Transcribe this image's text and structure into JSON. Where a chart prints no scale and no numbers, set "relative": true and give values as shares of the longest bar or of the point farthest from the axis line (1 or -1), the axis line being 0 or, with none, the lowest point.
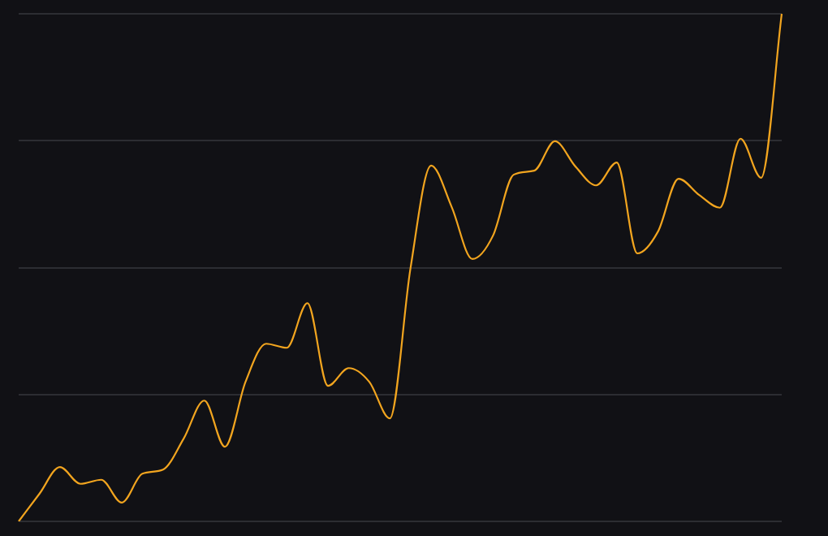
{
  "chart_data": {
    "type": "line",
    "relative": true,
    "grid": "y",
    "marker": "none",
    "line_style": "solid",
    "categories": [
      null,
      null,
      null,
      null,
      null,
      null,
      null,
      null,
      null,
      null,
      null,
      null,
      null,
      null,
      null,
      null,
      null,
      null,
      null,
      null,
      null,
      null,
      null,
      null,
      null,
      null,
      null,
      null,
      null,
      null,
      null,
      null,
      null,
      null,
      null,
      null,
      null,
      null
    ],
    "series": [
      {
        "color": "#f2a51f",
        "values": [
          0,
          0.054,
          0.107,
          0.074,
          0.082,
          0.037,
          0.094,
          0.102,
          0.163,
          0.238,
          0.147,
          0.275,
          0.35,
          0.342,
          0.43,
          0.267,
          0.302,
          0.275,
          0.203,
          0.499,
          0.701,
          0.619,
          0.517,
          0.563,
          0.683,
          0.691,
          0.749,
          0.699,
          0.662,
          0.707,
          0.528,
          0.571,
          0.675,
          0.643,
          0.618,
          0.754,
          0.677,
          1
        ]
      }
    ]
  }
}
